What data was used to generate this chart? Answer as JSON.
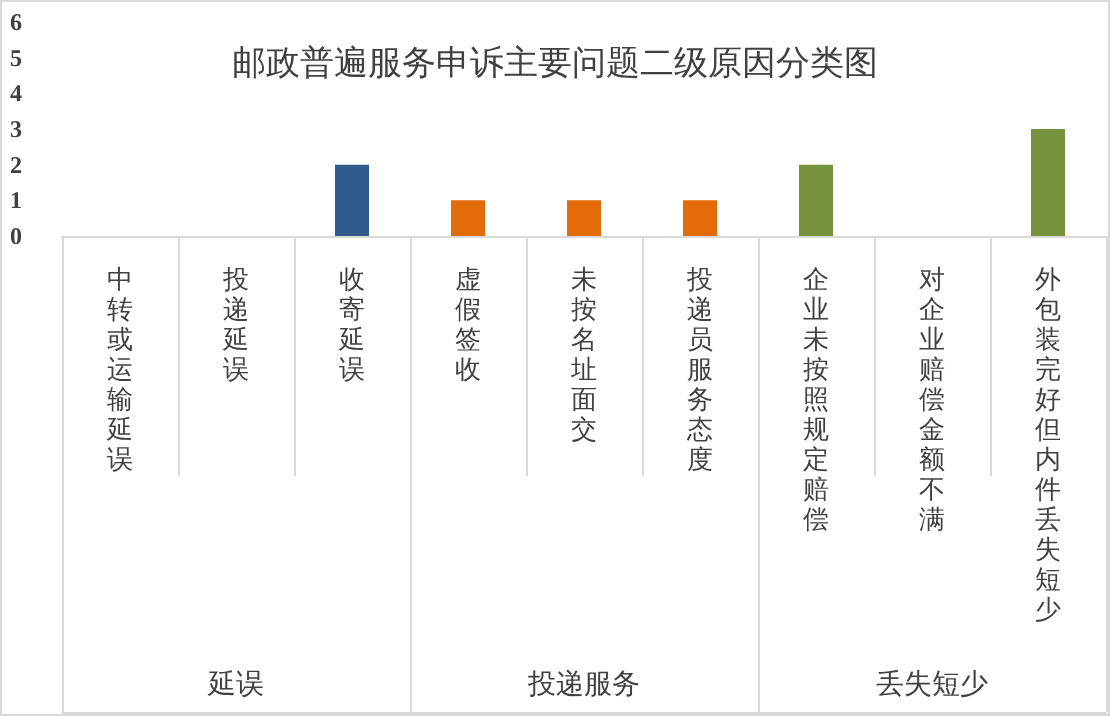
{
  "chart_data": {
    "type": "bar",
    "title": "邮政普遍服务申诉主要问题二级原因分类图",
    "categories": [
      "中转或运输延误",
      "投递延误",
      "收寄延误",
      "虚假签收",
      "未按名址面交",
      "投递员服务态度",
      "企业未按照规定赔偿",
      "对企业赔偿金额不满",
      "外包装完好但内件丢失短少"
    ],
    "values": [
      0,
      0,
      2,
      1,
      1,
      1,
      2,
      0,
      3
    ],
    "colors": [
      "#2f5b8c",
      "#2f5b8c",
      "#2f5b8c",
      "#e36c0a",
      "#e36c0a",
      "#e36c0a",
      "#76923c",
      "#76923c",
      "#76923c"
    ],
    "ylim": [
      0,
      6
    ],
    "yticks": [
      0,
      1,
      2,
      3,
      4,
      5,
      6
    ],
    "annotations": [
      "延误",
      "投递服务",
      "丢失短少"
    ]
  }
}
